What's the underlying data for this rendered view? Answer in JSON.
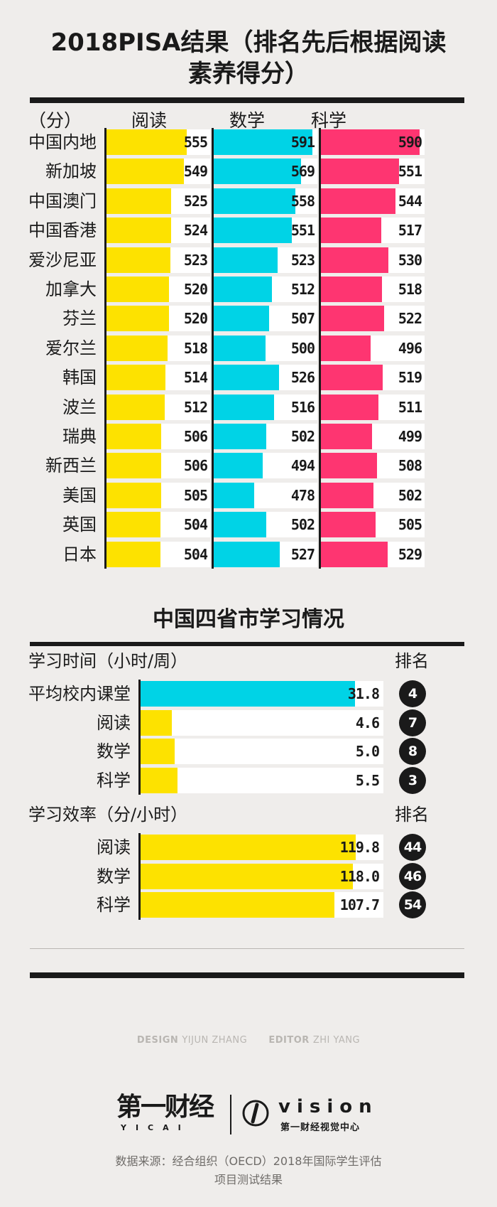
{
  "page": {
    "title_line1": "2018PISA结果（排名先后根据阅读",
    "title_line2": "素养得分）",
    "colors": {
      "reading": "#fde200",
      "math": "#00d3e6",
      "science": "#fe3571",
      "ink": "#1a1a1a",
      "background": "#efedeb"
    }
  },
  "chart_data": [
    {
      "type": "bar",
      "orientation": "horizontal",
      "title": "2018PISA结果（排名先后根据阅读素养得分）",
      "unit_label": "（分）",
      "categories": [
        "中国内地",
        "新加坡",
        "中国澳门",
        "中国香港",
        "爱沙尼亚",
        "加拿大",
        "芬兰",
        "爱尔兰",
        "韩国",
        "波兰",
        "瑞典",
        "新西兰",
        "美国",
        "英国",
        "日本"
      ],
      "series": [
        {
          "name": "阅读",
          "color": "#fde200",
          "values": [
            555,
            549,
            525,
            524,
            523,
            520,
            520,
            518,
            514,
            512,
            506,
            506,
            505,
            504,
            504
          ]
        },
        {
          "name": "数学",
          "color": "#00d3e6",
          "values": [
            591,
            569,
            558,
            551,
            523,
            512,
            507,
            500,
            526,
            516,
            502,
            494,
            478,
            502,
            527
          ]
        },
        {
          "name": "科学",
          "color": "#fe3571",
          "values": [
            590,
            551,
            544,
            517,
            530,
            518,
            522,
            496,
            519,
            511,
            499,
            508,
            502,
            505,
            529
          ]
        }
      ]
    },
    {
      "type": "bar",
      "orientation": "horizontal",
      "title": "中国四省市学习情况",
      "section_label": "学习时间（小时/周）",
      "rank_label": "排名",
      "categories": [
        "平均校内课堂",
        "阅读",
        "数学",
        "科学"
      ],
      "values": [
        31.8,
        4.6,
        5.0,
        5.5
      ],
      "value_labels": [
        "31.8",
        "4.6",
        "5.0",
        "5.5"
      ],
      "ranks": [
        "4",
        "7",
        "8",
        "3"
      ],
      "colors": [
        "#00d3e6",
        "#fde200",
        "#fde200",
        "#fde200"
      ]
    },
    {
      "type": "bar",
      "orientation": "horizontal",
      "section_label": "学习效率（分/小时）",
      "rank_label": "排名",
      "categories": [
        "阅读",
        "数学",
        "科学"
      ],
      "values": [
        119.8,
        118.0,
        107.7
      ],
      "value_labels": [
        "119.8",
        "118.0",
        "107.7"
      ],
      "ranks": [
        "44",
        "46",
        "54"
      ],
      "colors": [
        "#fde200",
        "#fde200",
        "#fde200"
      ]
    }
  ],
  "credits": {
    "design_label": "DESIGN",
    "design_name": "YIJUN ZHANG",
    "editor_label": "EDITOR",
    "editor_name": "ZHI YANG"
  },
  "logos": {
    "yicai": "第一财经",
    "yicai_sub": "YICAI",
    "vision": "vision",
    "vision_sub": "第一财经视觉中心"
  },
  "source": {
    "line1": "数据来源：经合组织（OECD）2018年国际学生评估",
    "line2": "项目测试结果"
  }
}
